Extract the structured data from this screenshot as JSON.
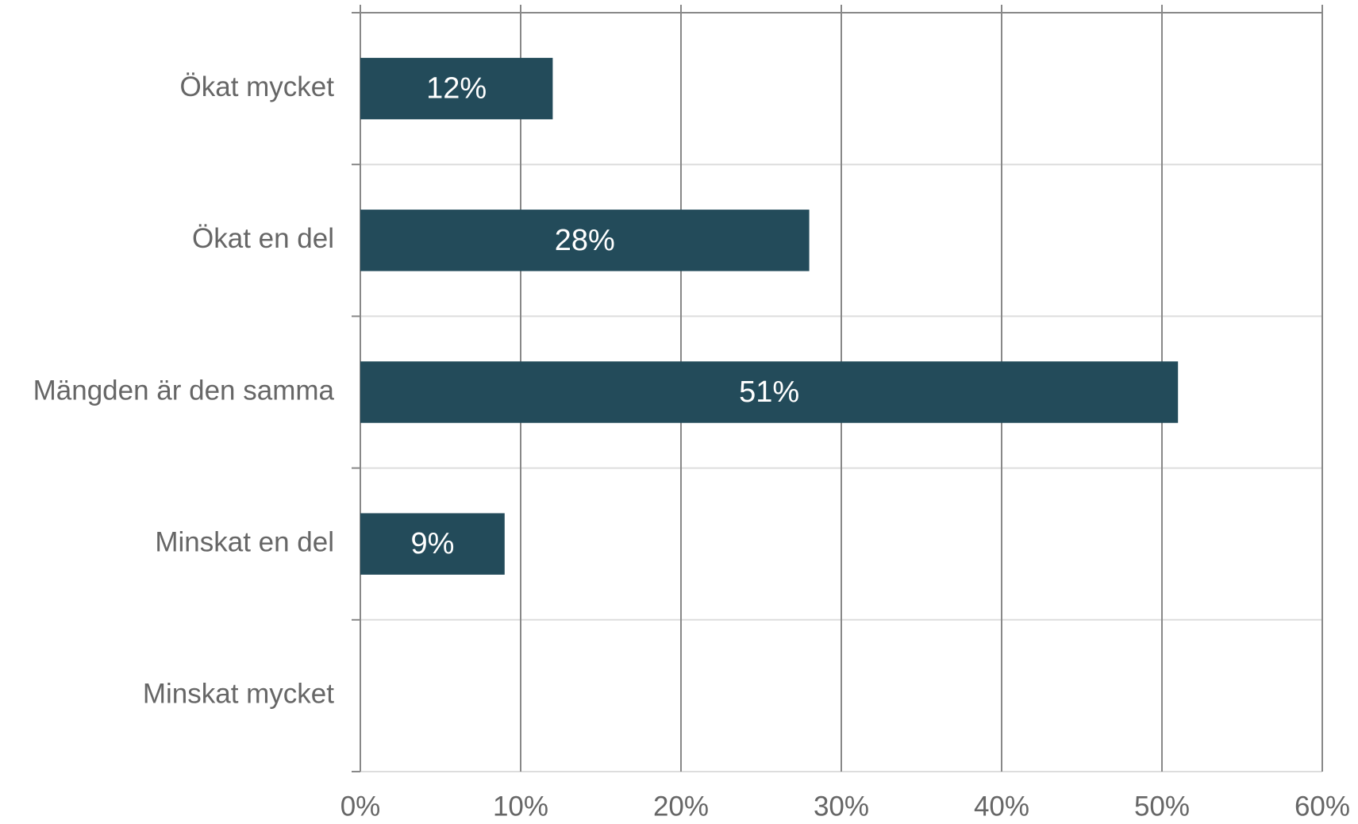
{
  "chart_data": {
    "type": "bar",
    "orientation": "horizontal",
    "categories": [
      "Ökat mycket",
      "Ökat en del",
      "Mängden är den samma",
      "Minskat en del",
      "Minskat mycket"
    ],
    "values": [
      12,
      28,
      51,
      9,
      0
    ],
    "value_labels": [
      "12%",
      "28%",
      "51%",
      "9%",
      null
    ],
    "color": "#234b5a",
    "xlim": [
      0,
      60
    ],
    "xticks": [
      {
        "value": 0,
        "label": "0%"
      },
      {
        "value": 10,
        "label": "10%"
      },
      {
        "value": 20,
        "label": "20%"
      },
      {
        "value": 30,
        "label": "30%"
      },
      {
        "value": 40,
        "label": "40%"
      },
      {
        "value": 50,
        "label": "50%"
      },
      {
        "value": 60,
        "label": "60%"
      }
    ],
    "grid": true
  }
}
